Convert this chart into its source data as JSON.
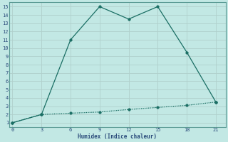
{
  "xlabel": "Humidex (Indice chaleur)",
  "background_color": "#c2e8e4",
  "line_color": "#1a6e64",
  "grid_color": "#b0d0cc",
  "line1_x": [
    0,
    3,
    6,
    9,
    12,
    15,
    18,
    21
  ],
  "line1_y": [
    1,
    2,
    11,
    15,
    13.5,
    15,
    9.5,
    3.5
  ],
  "line2_x": [
    0,
    3,
    6,
    9,
    12,
    15,
    18,
    21
  ],
  "line2_y": [
    1,
    2,
    2.15,
    2.3,
    2.6,
    2.85,
    3.1,
    3.5
  ],
  "xlim": [
    -0.3,
    22
  ],
  "ylim": [
    0.5,
    15.5
  ],
  "xticks": [
    0,
    3,
    6,
    9,
    12,
    15,
    18,
    21
  ],
  "yticks": [
    1,
    2,
    3,
    4,
    5,
    6,
    7,
    8,
    9,
    10,
    11,
    12,
    13,
    14,
    15
  ],
  "font_color": "#2a4a7a",
  "markersize": 2.5,
  "linewidth": 0.9,
  "tick_fontsize": 5.0,
  "xlabel_fontsize": 5.5
}
